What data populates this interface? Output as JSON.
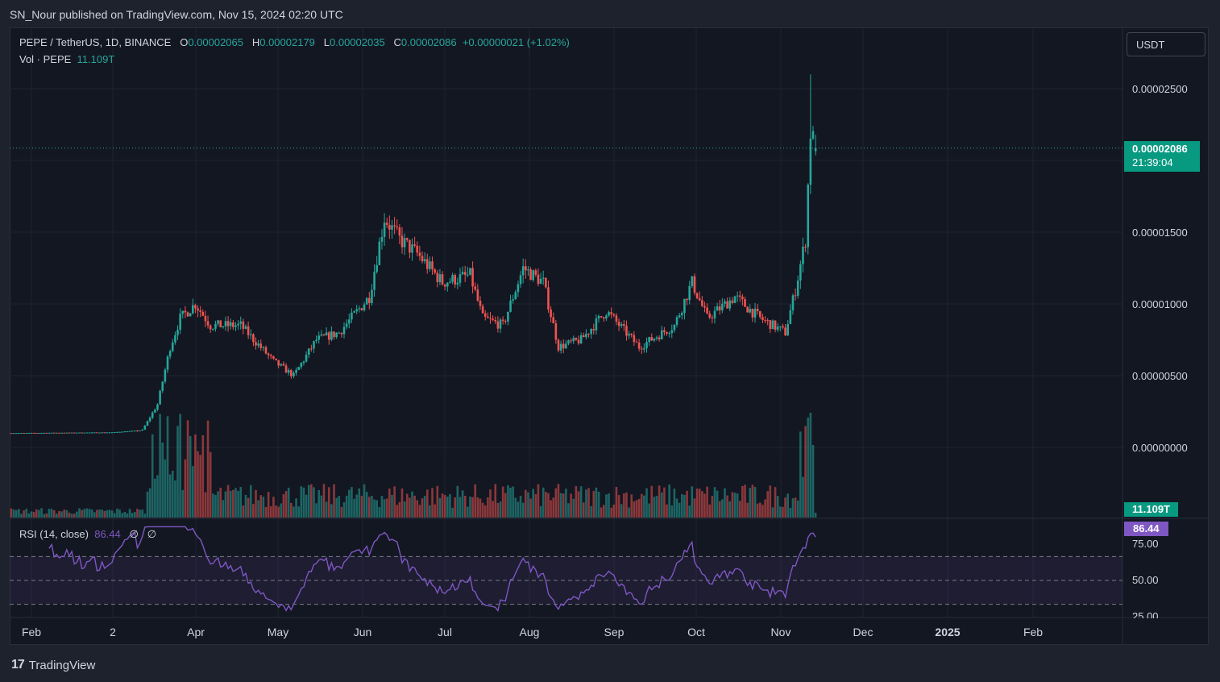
{
  "header": {
    "publisher_line": "SN_Nour published on TradingView.com, Nov 15, 2024 02:20 UTC"
  },
  "legend": {
    "symbol": "PEPE / TetherUS, 1D, BINANCE",
    "o_label": "O",
    "o": "0.00002065",
    "h_label": "H",
    "h": "0.00002179",
    "l_label": "L",
    "l": "0.00002035",
    "c_label": "C",
    "c": "0.00002086",
    "change": "+0.00000021 (+1.02%)",
    "vol_label": "Vol · PEPE",
    "vol": "11.109T"
  },
  "rsi_legend": {
    "label": "RSI (14, close)",
    "value": "86.44",
    "n1": "∅",
    "n2": "∅"
  },
  "currency_button": "USDT",
  "price_axis": [
    "0.00002500",
    "0.00001500",
    "0.00001000",
    "0.00000500",
    "0.00000000"
  ],
  "current_price_tag": {
    "price": "0.00002086",
    "countdown": "21:39:04"
  },
  "volume_tag": "11.109T",
  "rsi_tag": "86.44",
  "rsi_axis": [
    "75.00",
    "50.00",
    "25.00"
  ],
  "time_axis": [
    "Feb",
    "2",
    "Apr",
    "May",
    "Jun",
    "Jul",
    "Aug",
    "Sep",
    "Oct",
    "Nov",
    "Dec",
    "2025",
    "Feb"
  ],
  "footer": {
    "brand": "TradingView"
  },
  "colors": {
    "up": "#26a69a",
    "down": "#ef5350",
    "rsi": "#7e57c2",
    "bg": "#131722"
  },
  "chart_data": {
    "type": "candlestick",
    "ylim": [
      0,
      2.5e-05
    ],
    "anchors": [
      {
        "date": "2024-01-01",
        "close": 1e-06
      },
      {
        "date": "2024-02-10",
        "close": 1.05e-06
      },
      {
        "date": "2024-02-22",
        "close": 1.2e-06
      },
      {
        "date": "2024-02-28",
        "close": 3e-06
      },
      {
        "date": "2024-03-04",
        "close": 7e-06
      },
      {
        "date": "2024-03-08",
        "close": 9e-06
      },
      {
        "date": "2024-03-14",
        "close": 1e-05
      },
      {
        "date": "2024-03-20",
        "close": 8.5e-06
      },
      {
        "date": "2024-04-01",
        "close": 8.5e-06
      },
      {
        "date": "2024-04-14",
        "close": 6e-06
      },
      {
        "date": "2024-04-22",
        "close": 5e-06
      },
      {
        "date": "2024-05-01",
        "close": 7.5e-06
      },
      {
        "date": "2024-05-10",
        "close": 8e-06
      },
      {
        "date": "2024-05-22",
        "close": 1.05e-05
      },
      {
        "date": "2024-05-28",
        "close": 1.6e-05
      },
      {
        "date": "2024-06-03",
        "close": 1.45e-05
      },
      {
        "date": "2024-06-10",
        "close": 1.35e-05
      },
      {
        "date": "2024-06-20",
        "close": 1.15e-05
      },
      {
        "date": "2024-07-01",
        "close": 1.2e-05
      },
      {
        "date": "2024-07-06",
        "close": 9e-06
      },
      {
        "date": "2024-07-14",
        "close": 8.5e-06
      },
      {
        "date": "2024-07-22",
        "close": 1.25e-05
      },
      {
        "date": "2024-07-30",
        "close": 1.15e-05
      },
      {
        "date": "2024-08-05",
        "close": 7e-06
      },
      {
        "date": "2024-08-14",
        "close": 7.5e-06
      },
      {
        "date": "2024-08-24",
        "close": 9.5e-06
      },
      {
        "date": "2024-09-06",
        "close": 7e-06
      },
      {
        "date": "2024-09-20",
        "close": 8.5e-06
      },
      {
        "date": "2024-09-27",
        "close": 1.15e-05
      },
      {
        "date": "2024-10-03",
        "close": 9e-06
      },
      {
        "date": "2024-10-14",
        "close": 1.05e-05
      },
      {
        "date": "2024-10-24",
        "close": 9e-06
      },
      {
        "date": "2024-11-03",
        "close": 8e-06
      },
      {
        "date": "2024-11-07",
        "close": 1.1e-05
      },
      {
        "date": "2024-11-11",
        "close": 1.45e-05
      },
      {
        "date": "2024-11-13",
        "close": 2.2e-05
      },
      {
        "date": "2024-11-15",
        "close": 2.086e-05
      }
    ],
    "last_candle": {
      "date": "2024-11-15",
      "open": 2.065e-05,
      "high": 2.179e-05,
      "low": 2.035e-05,
      "close": 2.086e-05
    },
    "rsi": {
      "last": 86.44,
      "levels": [
        75,
        50,
        25
      ]
    }
  }
}
